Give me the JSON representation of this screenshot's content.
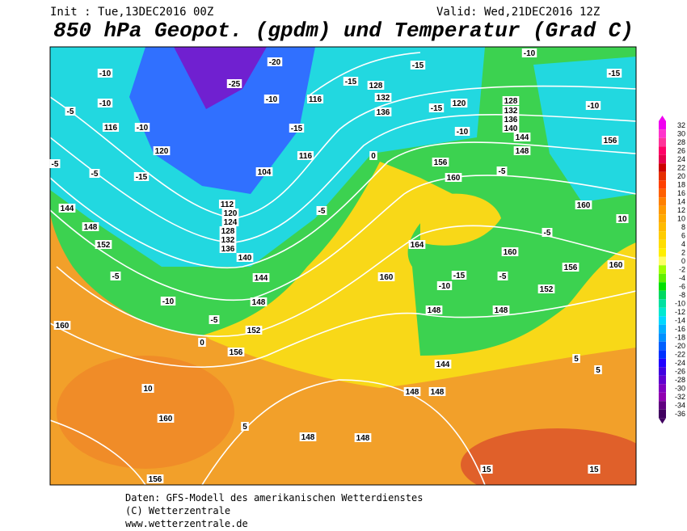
{
  "header": {
    "init": "Init : Tue,13DEC2016 00Z",
    "valid": "Valid: Wed,21DEC2016 12Z",
    "title": "850 hPa Geopot. (gpdm) und Temperatur (Grad C)"
  },
  "map": {
    "labels": [
      -10,
      -10,
      -5,
      116,
      120,
      -5,
      -5,
      -15,
      144,
      148,
      152,
      -5,
      -10,
      -5,
      160,
      0,
      156,
      152,
      148,
      144,
      140,
      136,
      132,
      128,
      124,
      120,
      112,
      104,
      -5,
      0,
      160,
      164,
      156,
      160,
      -5,
      160,
      152,
      156,
      160,
      160,
      156,
      -10,
      -15,
      -10,
      148,
      144,
      140,
      136,
      132,
      128,
      120,
      -15,
      -10,
      -15,
      136,
      132,
      128,
      -15,
      116,
      -10,
      -15,
      116,
      -10,
      -25,
      -20,
      10,
      160,
      156,
      5,
      148,
      148,
      148,
      144,
      148,
      15,
      15,
      5,
      5,
      -10,
      -15,
      148,
      148,
      -5,
      -5,
      10
    ]
  },
  "legend": {
    "values": [
      32,
      30,
      28,
      26,
      24,
      22,
      20,
      18,
      16,
      14,
      12,
      10,
      8,
      6,
      4,
      2,
      0,
      -2,
      -4,
      -6,
      -8,
      -10,
      -12,
      -14,
      -16,
      -18,
      -20,
      -22,
      -24,
      -26,
      -28,
      -30,
      -32,
      -34,
      -36
    ],
    "colors": [
      "#f000f0",
      "#ff33cc",
      "#ff3399",
      "#ff0066",
      "#e6004c",
      "#cc0000",
      "#e62e00",
      "#ff4000",
      "#ff6000",
      "#ff8000",
      "#ff9900",
      "#ffaa00",
      "#ffbb00",
      "#ffcc00",
      "#ffdd00",
      "#ffee00",
      "#ffff66",
      "#a0ff00",
      "#60f000",
      "#00e000",
      "#00d860",
      "#00e0a0",
      "#00e8d0",
      "#00d8ff",
      "#00b0ff",
      "#0090ff",
      "#0060ff",
      "#0030ff",
      "#2000ff",
      "#4000e0",
      "#6000d0",
      "#8000c0",
      "#9000b0",
      "#600080",
      "#400060"
    ]
  },
  "footer": {
    "lines": [
      "Daten: GFS-Modell des amerikanischen Wetterdienstes",
      "(C) Wetterzentrale",
      "www.wetterzentrale.de"
    ]
  }
}
